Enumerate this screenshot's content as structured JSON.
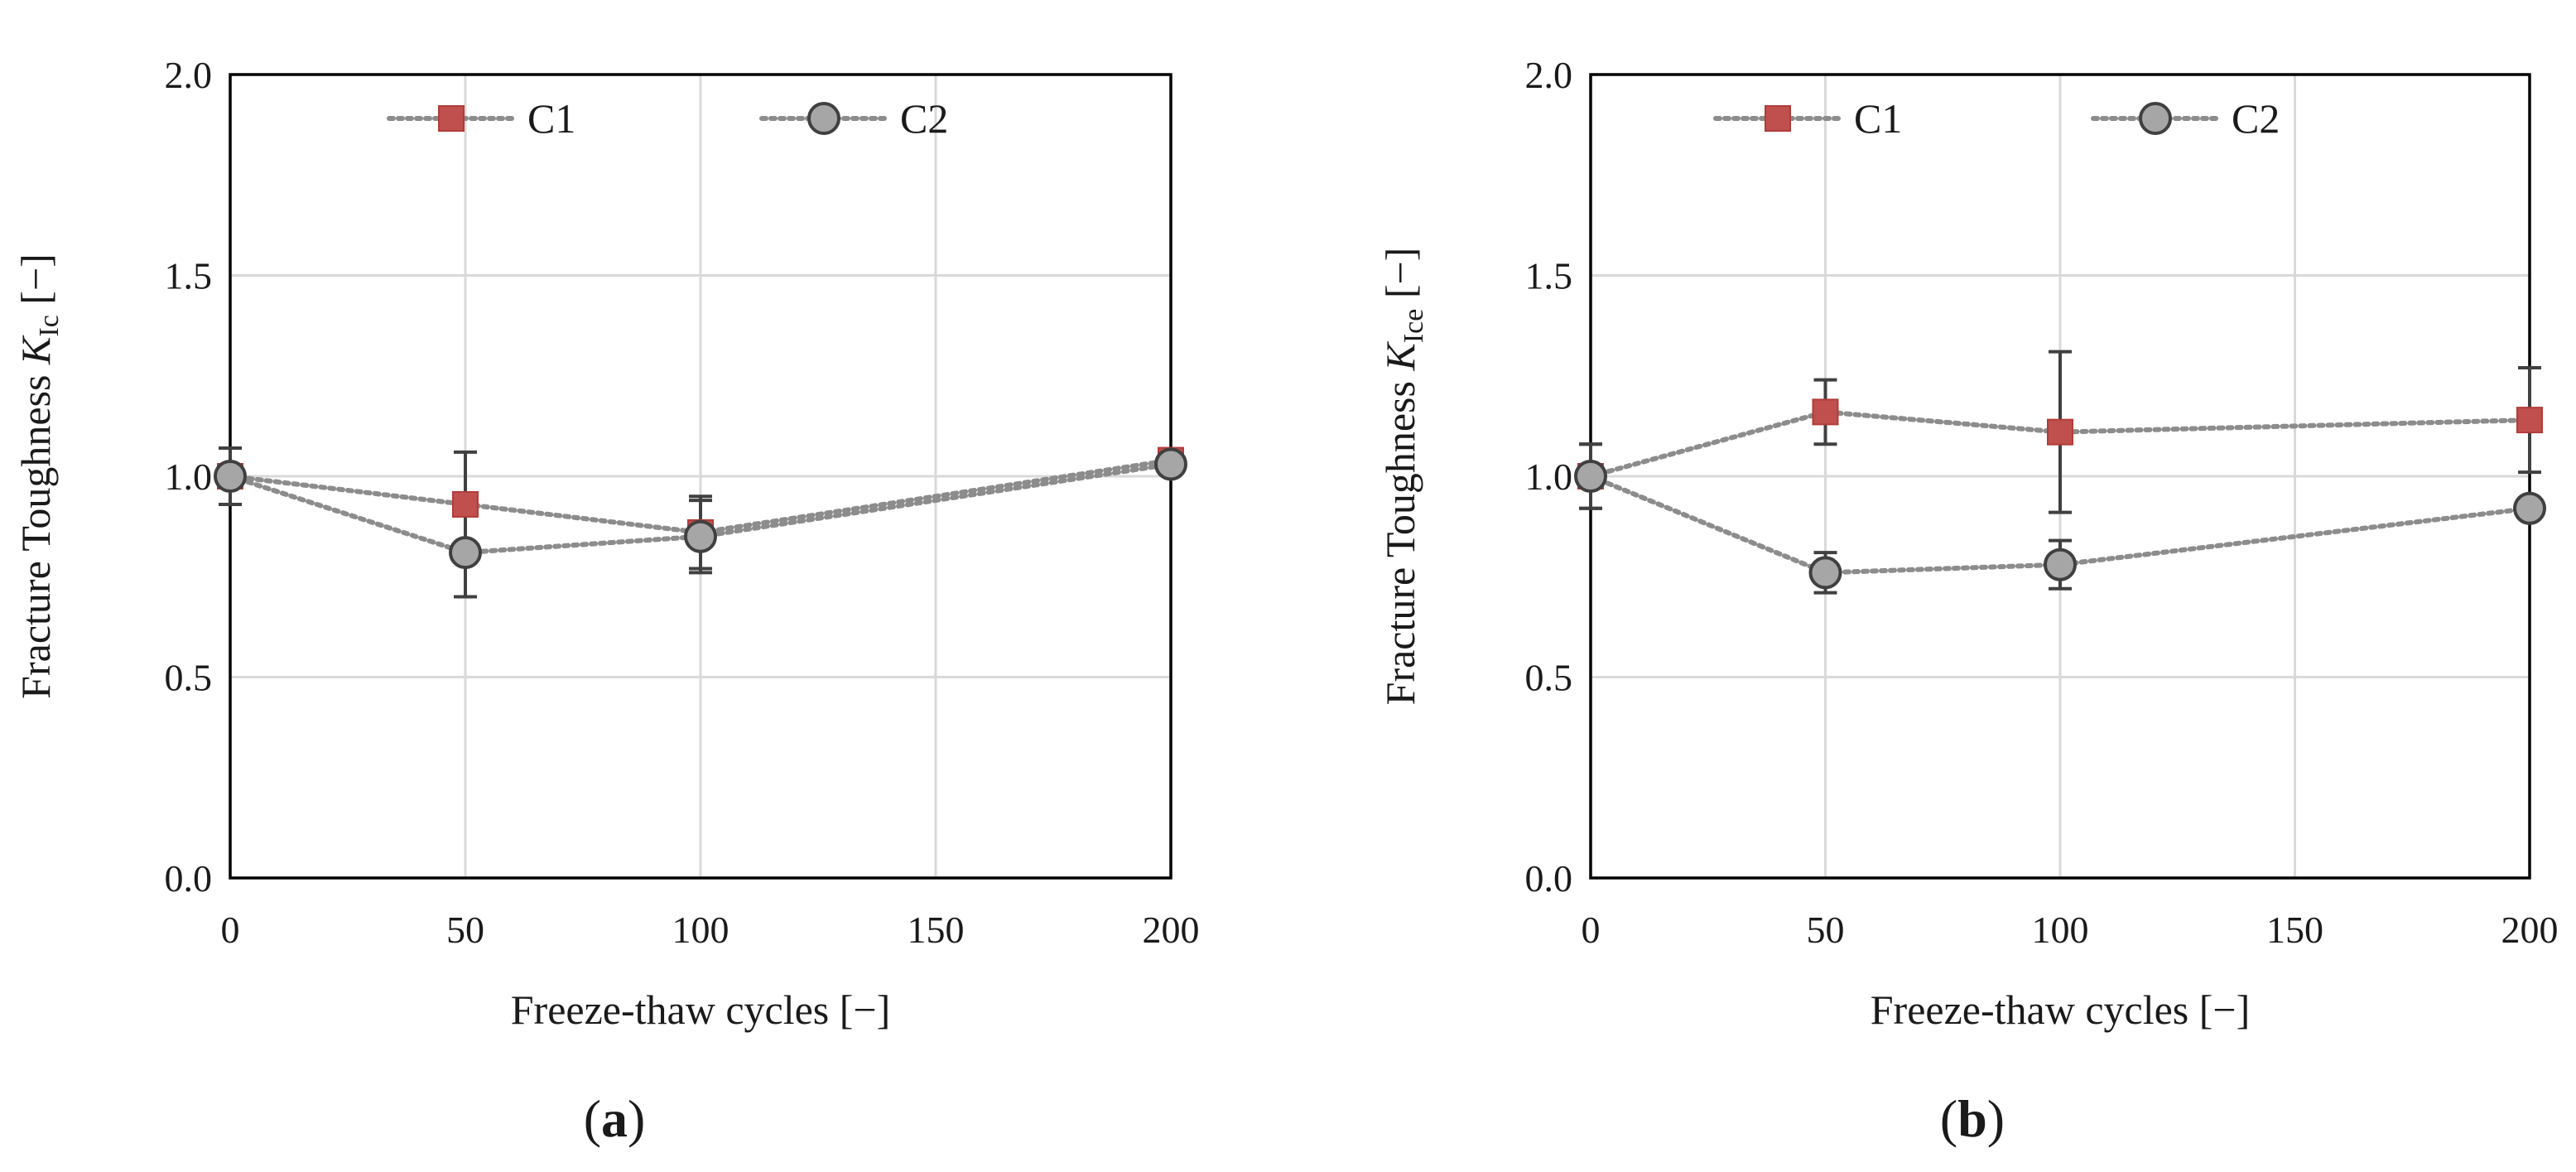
{
  "figure": {
    "panel_a_label": "a",
    "panel_b_label": "b"
  },
  "chart_data": [
    {
      "type": "line",
      "panel": "a",
      "title": "",
      "xlabel": "Freeze-thaw cycles [−]",
      "ylabel_prefix": "Fracture Toughness ",
      "ylabel_symbol": "K",
      "ylabel_subscript": "Ic",
      "ylabel_suffix": " [−]",
      "xlim": [
        0,
        200
      ],
      "ylim": [
        0,
        2
      ],
      "xticks": [
        0,
        50,
        100,
        150,
        200
      ],
      "xtick_labels": [
        "0",
        "50",
        "100",
        "150",
        "200"
      ],
      "yticks": [
        0,
        0.5,
        1,
        1.5,
        2
      ],
      "ytick_labels": [
        "0.0",
        "0.5",
        "1.0",
        "1.5",
        "2.0"
      ],
      "grid": true,
      "legend_position": "top-center",
      "series": [
        {
          "name": "C1",
          "color": "#c0504d",
          "marker": "square",
          "x": [
            0,
            50,
            100,
            200
          ],
          "y": [
            1.0,
            0.93,
            0.86,
            1.04
          ],
          "err": [
            0.07,
            0.13,
            0.09,
            0.02
          ]
        },
        {
          "name": "C2",
          "color": "#a6a6a6",
          "marker": "circle",
          "x": [
            0,
            50,
            100,
            200
          ],
          "y": [
            1.0,
            0.81,
            0.85,
            1.03
          ],
          "err": [
            0.07,
            0.11,
            0.09,
            0.02
          ]
        }
      ]
    },
    {
      "type": "line",
      "panel": "b",
      "title": "",
      "xlabel": "Freeze-thaw cycles [−]",
      "ylabel_prefix": "Fracture Toughness ",
      "ylabel_symbol": "K",
      "ylabel_subscript": "Ice",
      "ylabel_suffix": " [−]",
      "xlim": [
        0,
        200
      ],
      "ylim": [
        0,
        2
      ],
      "xticks": [
        0,
        50,
        100,
        150,
        200
      ],
      "xtick_labels": [
        "0",
        "50",
        "100",
        "150",
        "200"
      ],
      "yticks": [
        0,
        0.5,
        1,
        1.5,
        2
      ],
      "ytick_labels": [
        "0.0",
        "0.5",
        "1.0",
        "1.5",
        "2.0"
      ],
      "grid": true,
      "legend_position": "top-center",
      "series": [
        {
          "name": "C1",
          "color": "#c0504d",
          "marker": "square",
          "x": [
            0,
            50,
            100,
            200
          ],
          "y": [
            1.0,
            1.16,
            1.11,
            1.14
          ],
          "err": [
            0.08,
            0.08,
            0.2,
            0.13
          ]
        },
        {
          "name": "C2",
          "color": "#a6a6a6",
          "marker": "circle",
          "x": [
            0,
            50,
            100,
            200
          ],
          "y": [
            1.0,
            0.76,
            0.78,
            0.92
          ],
          "err": [
            0.08,
            0.05,
            0.06,
            0.02
          ]
        }
      ]
    }
  ]
}
